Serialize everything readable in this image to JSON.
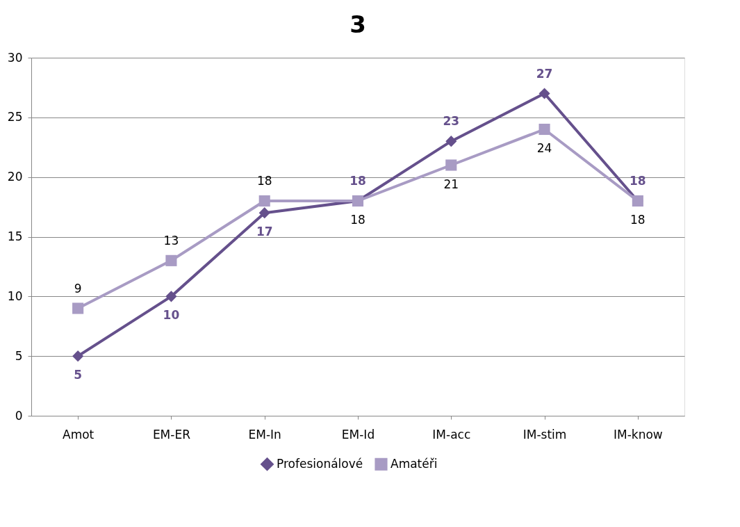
{
  "chart_data": {
    "type": "line",
    "title": "3",
    "categories": [
      "Amot",
      "EM-ER",
      "EM-In",
      "EM-Id",
      "IM-acc",
      "IM-stim",
      "IM-know"
    ],
    "series": [
      {
        "name": "Profesionálové",
        "color": "#65508c",
        "marker": "diamond",
        "values": [
          5,
          10,
          17,
          18,
          23,
          27,
          18
        ]
      },
      {
        "name": "Amatéři",
        "color": "#a89bc4",
        "marker": "square",
        "values": [
          9,
          13,
          18,
          18,
          21,
          24,
          18
        ]
      }
    ],
    "ylim": [
      0,
      30
    ],
    "yticks": [
      0,
      5,
      10,
      15,
      20,
      25,
      30
    ],
    "grid": "y",
    "legend": "bottom",
    "data_labels": true,
    "line_style": "solid"
  }
}
